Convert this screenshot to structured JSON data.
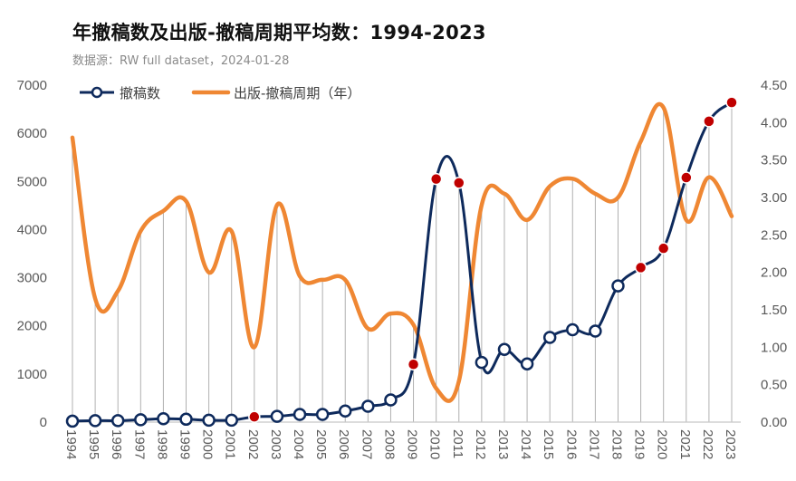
{
  "title": "年撤稿数及出版-撤稿周期平均数：1994-2023",
  "subtitle": "数据源：RW full dataset，2024-01-28",
  "colors": {
    "retractions_line": "#0e2a5c",
    "period_line": "#ef8733",
    "highlight_marker": "#c00000",
    "normal_marker_fill": "#ffffff",
    "dropline": "#b0b0b0",
    "axis": "#c8c8c8",
    "tick_text": "#595959"
  },
  "chart_data": {
    "type": "line",
    "title": "年撤稿数及出版-撤稿周期平均数：1994-2023",
    "categories": [
      "1994",
      "1995",
      "1996",
      "1997",
      "1998",
      "1999",
      "2000",
      "2001",
      "2002",
      "2003",
      "2004",
      "2005",
      "2006",
      "2007",
      "2008",
      "2009",
      "2010",
      "2011",
      "2012",
      "2013",
      "2014",
      "2015",
      "2016",
      "2017",
      "2018",
      "2019",
      "2020",
      "2021",
      "2022",
      "2023"
    ],
    "y_left": {
      "min": 0,
      "max": 7000,
      "ticks": [
        0,
        1000,
        2000,
        3000,
        4000,
        5000,
        6000,
        7000
      ]
    },
    "y_right": {
      "min": 0,
      "max": 4.5,
      "ticks": [
        "0.00",
        "0.50",
        "1.00",
        "1.50",
        "2.00",
        "2.50",
        "3.00",
        "3.50",
        "4.00",
        "4.50"
      ]
    },
    "grid": false,
    "legend_position": "top-left",
    "series": [
      {
        "name": "撤稿数",
        "axis": "left",
        "smooth": true,
        "markers": true,
        "values": [
          20,
          30,
          30,
          50,
          70,
          60,
          40,
          40,
          110,
          120,
          160,
          160,
          230,
          330,
          460,
          1200,
          5050,
          4970,
          1240,
          1510,
          1210,
          1760,
          1920,
          1890,
          2830,
          3210,
          3610,
          5080,
          6250,
          6640
        ],
        "highlighted_years": [
          "2002",
          "2009",
          "2010",
          "2011",
          "2019",
          "2020",
          "2021",
          "2022",
          "2023"
        ]
      },
      {
        "name": "出版-撤稿周期（年）",
        "axis": "right",
        "smooth": true,
        "markers": false,
        "values": [
          3.8,
          1.65,
          1.75,
          2.55,
          2.82,
          2.95,
          2.0,
          2.55,
          1.0,
          2.9,
          1.95,
          1.9,
          1.9,
          1.25,
          1.45,
          1.3,
          0.45,
          0.55,
          2.9,
          3.05,
          2.7,
          3.15,
          3.25,
          3.05,
          3.0,
          3.75,
          4.2,
          2.7,
          3.27,
          2.75
        ]
      }
    ]
  }
}
